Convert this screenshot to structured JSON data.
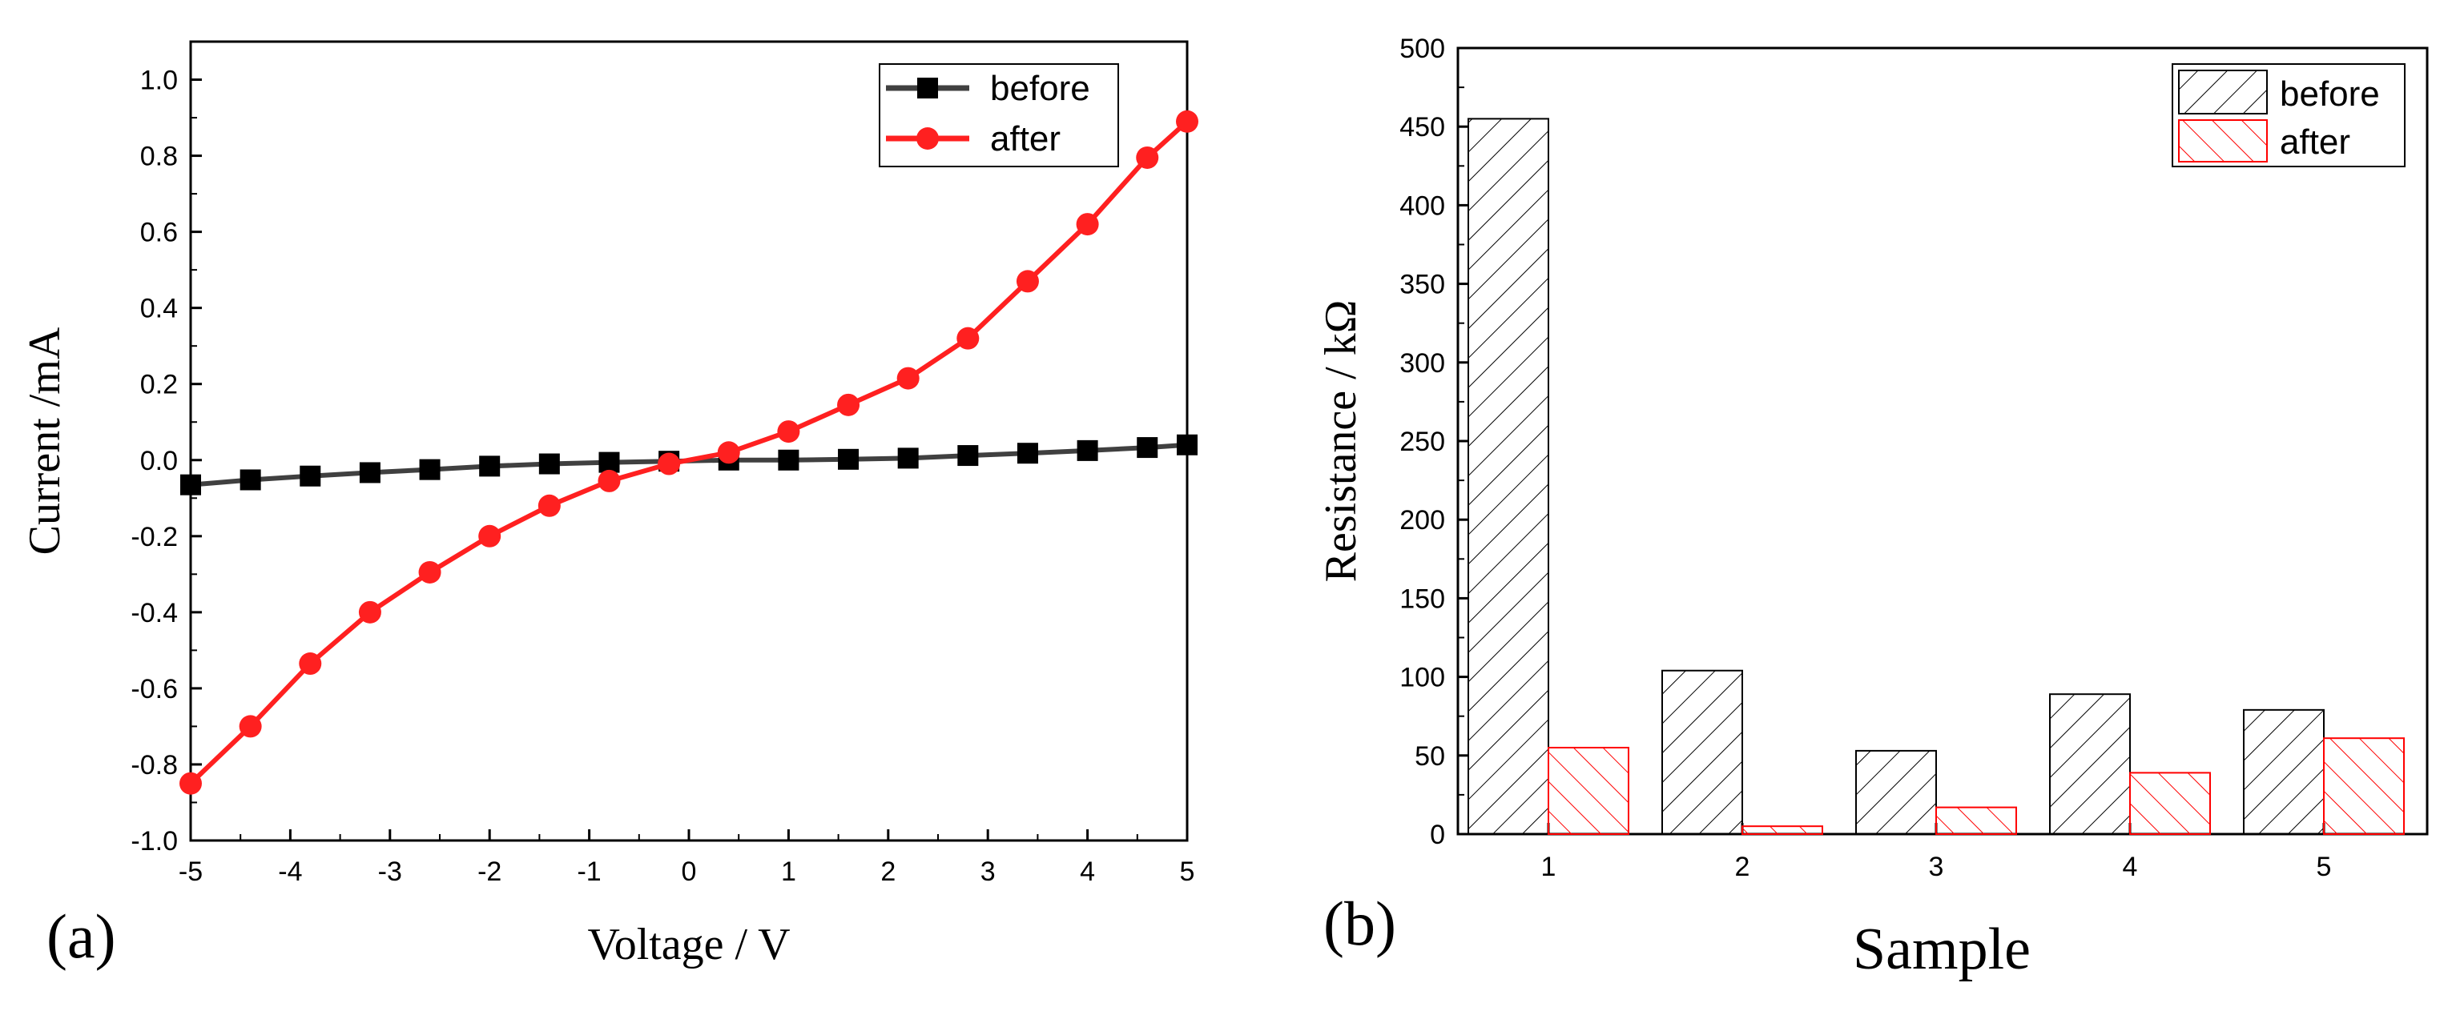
{
  "chart_data": [
    {
      "type": "line",
      "panel_label": "(a)",
      "title": "",
      "xlabel": "Voltage / V",
      "ylabel": "Current /mA",
      "xlim": [
        -5,
        5
      ],
      "ylim": [
        -1.0,
        1.1
      ],
      "xticks": [
        -5,
        -4,
        -3,
        -2,
        -1,
        0,
        1,
        2,
        3,
        4,
        5
      ],
      "xtick_labels": [
        "-5",
        "-4",
        "-3",
        "-2",
        "-1",
        "0",
        "1",
        "2",
        "3",
        "4",
        "5"
      ],
      "yticks": [
        -1.0,
        -0.8,
        -0.6,
        -0.4,
        -0.2,
        0.0,
        0.2,
        0.4,
        0.6,
        0.8,
        1.0
      ],
      "ytick_labels": [
        "-1.0",
        "-0.8",
        "-0.6",
        "-0.4",
        "-0.2",
        "0.0",
        "0.2",
        "0.4",
        "0.6",
        "0.8",
        "1.0"
      ],
      "legend_position": "top-right",
      "series": [
        {
          "name": "before",
          "color": "#404040",
          "marker": "square",
          "x": [
            -5,
            -4.4,
            -3.8,
            -3.2,
            -2.6,
            -2.0,
            -1.4,
            -0.8,
            -0.2,
            0.4,
            1.0,
            1.6,
            2.2,
            2.8,
            3.4,
            4.0,
            4.6,
            5.0
          ],
          "y": [
            -0.065,
            -0.052,
            -0.042,
            -0.033,
            -0.025,
            -0.016,
            -0.01,
            -0.006,
            -0.003,
            0.0,
            0.0,
            0.002,
            0.005,
            0.012,
            0.018,
            0.025,
            0.033,
            0.04
          ]
        },
        {
          "name": "after",
          "color": "#ff2020",
          "marker": "circle",
          "x": [
            -5,
            -4.4,
            -3.8,
            -3.2,
            -2.6,
            -2.0,
            -1.4,
            -0.8,
            -0.2,
            0.4,
            1.0,
            1.6,
            2.2,
            2.8,
            3.4,
            4.0,
            4.6,
            5.0
          ],
          "y": [
            -0.85,
            -0.7,
            -0.535,
            -0.4,
            -0.295,
            -0.2,
            -0.12,
            -0.055,
            -0.01,
            0.02,
            0.075,
            0.145,
            0.215,
            0.32,
            0.47,
            0.62,
            0.795,
            0.89
          ]
        }
      ]
    },
    {
      "type": "bar",
      "panel_label": "(b)",
      "title": "",
      "xlabel": "Sample",
      "ylabel": "Resistance / kΩ",
      "categories": [
        "1",
        "2",
        "3",
        "4",
        "5"
      ],
      "ylim": [
        0,
        500
      ],
      "yticks": [
        0,
        50,
        100,
        150,
        200,
        250,
        300,
        350,
        400,
        450,
        500
      ],
      "ytick_labels": [
        "0",
        "50",
        "100",
        "150",
        "200",
        "250",
        "300",
        "350",
        "400",
        "450",
        "500"
      ],
      "legend_position": "top-right",
      "series": [
        {
          "name": "before",
          "color": "#000000",
          "pattern": "hatch-forward",
          "values": [
            455,
            104,
            53,
            89,
            79
          ]
        },
        {
          "name": "after",
          "color": "#ff0000",
          "pattern": "hatch-backward",
          "values": [
            55,
            5,
            17,
            39,
            61
          ]
        }
      ]
    }
  ]
}
